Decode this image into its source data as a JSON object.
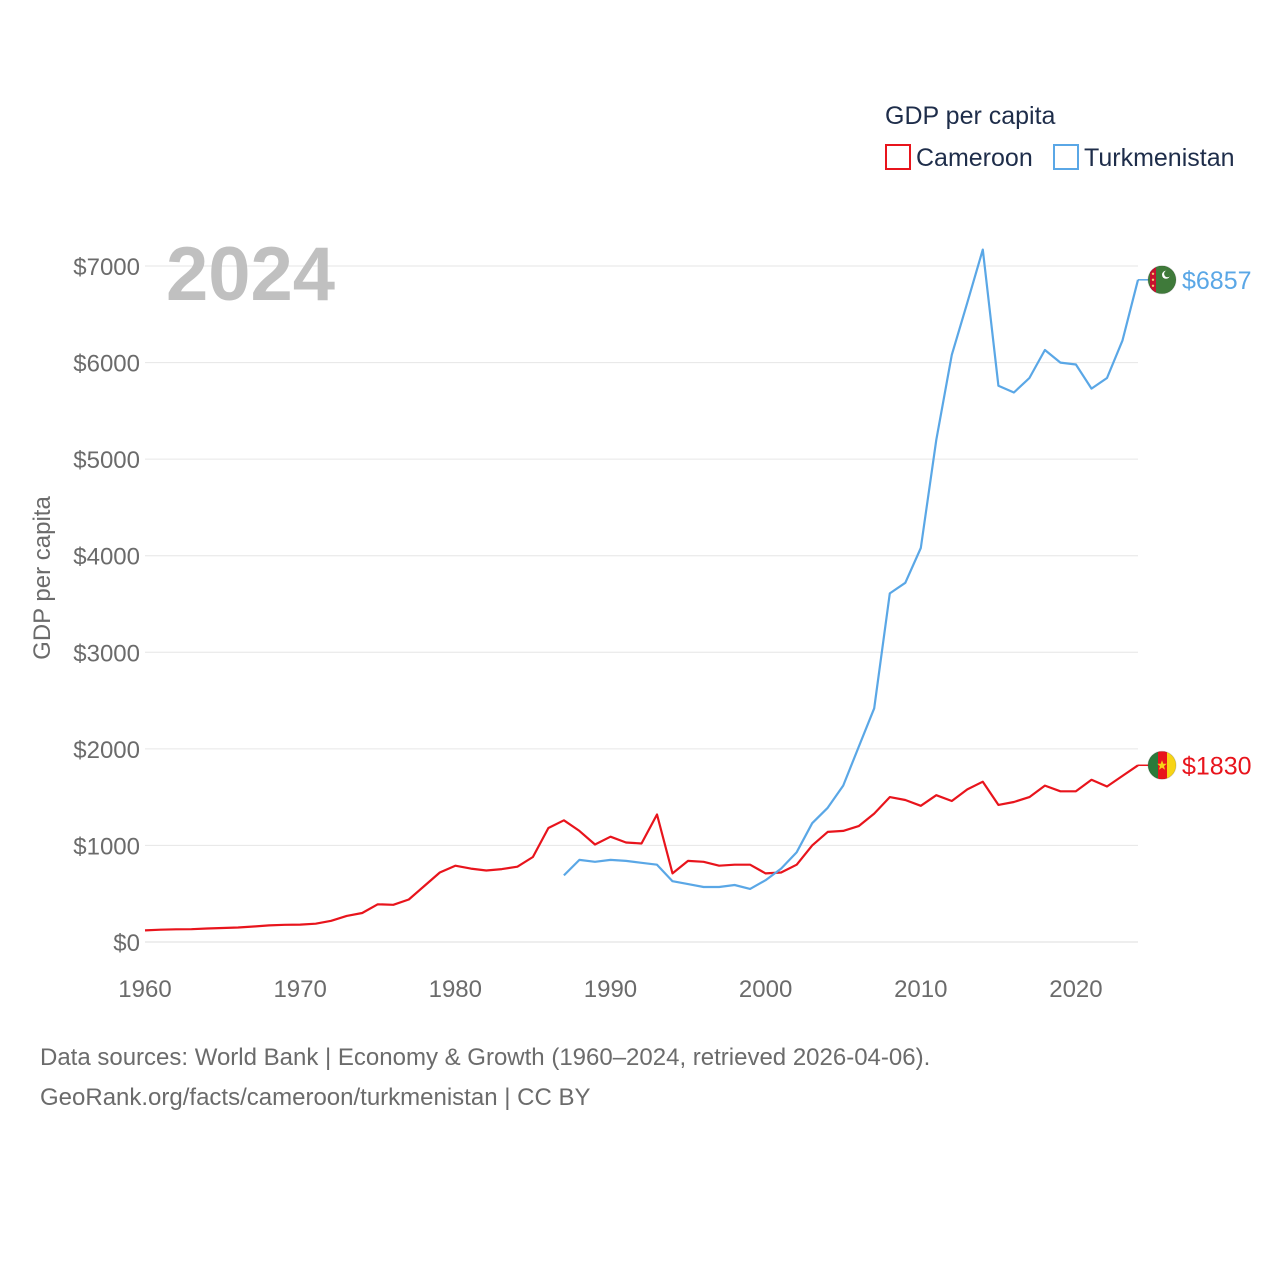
{
  "chart_data": {
    "type": "line",
    "title": "GDP per capita",
    "ylabel": "GDP per capita",
    "year_label": "2024",
    "xlim": [
      1960,
      2024
    ],
    "ylim": [
      0,
      7200
    ],
    "x_ticks": [
      1960,
      1970,
      1980,
      1990,
      2000,
      2010,
      2020
    ],
    "y_ticks": [
      0,
      1000,
      2000,
      3000,
      4000,
      5000,
      6000,
      7000
    ],
    "y_tick_labels": [
      "$0",
      "$1000",
      "$2000",
      "$3000",
      "$4000",
      "$5000",
      "$6000",
      "$7000"
    ],
    "grid": true,
    "legend_position": "top-right",
    "series": [
      {
        "name": "Cameroon",
        "color": "#e8141c",
        "end_label": "$1830",
        "flag_icon": "cameroon-flag-icon",
        "points": [
          [
            1960,
            120
          ],
          [
            1961,
            127
          ],
          [
            1962,
            131
          ],
          [
            1963,
            133
          ],
          [
            1964,
            140
          ],
          [
            1965,
            145
          ],
          [
            1966,
            150
          ],
          [
            1967,
            160
          ],
          [
            1968,
            172
          ],
          [
            1969,
            178
          ],
          [
            1970,
            180
          ],
          [
            1971,
            190
          ],
          [
            1972,
            220
          ],
          [
            1973,
            270
          ],
          [
            1974,
            300
          ],
          [
            1975,
            390
          ],
          [
            1976,
            385
          ],
          [
            1977,
            440
          ],
          [
            1978,
            580
          ],
          [
            1979,
            720
          ],
          [
            1980,
            790
          ],
          [
            1981,
            760
          ],
          [
            1982,
            740
          ],
          [
            1983,
            755
          ],
          [
            1984,
            780
          ],
          [
            1985,
            880
          ],
          [
            1986,
            1180
          ],
          [
            1987,
            1260
          ],
          [
            1988,
            1150
          ],
          [
            1989,
            1010
          ],
          [
            1990,
            1090
          ],
          [
            1991,
            1030
          ],
          [
            1992,
            1020
          ],
          [
            1993,
            1320
          ],
          [
            1994,
            710
          ],
          [
            1995,
            840
          ],
          [
            1996,
            830
          ],
          [
            1997,
            790
          ],
          [
            1998,
            800
          ],
          [
            1999,
            800
          ],
          [
            2000,
            710
          ],
          [
            2001,
            720
          ],
          [
            2002,
            800
          ],
          [
            2003,
            1000
          ],
          [
            2004,
            1140
          ],
          [
            2005,
            1150
          ],
          [
            2006,
            1200
          ],
          [
            2007,
            1330
          ],
          [
            2008,
            1500
          ],
          [
            2009,
            1470
          ],
          [
            2010,
            1410
          ],
          [
            2011,
            1520
          ],
          [
            2012,
            1460
          ],
          [
            2013,
            1580
          ],
          [
            2014,
            1660
          ],
          [
            2015,
            1420
          ],
          [
            2016,
            1450
          ],
          [
            2017,
            1500
          ],
          [
            2018,
            1620
          ],
          [
            2019,
            1560
          ],
          [
            2020,
            1560
          ],
          [
            2021,
            1680
          ],
          [
            2022,
            1610
          ],
          [
            2023,
            1720
          ],
          [
            2024,
            1830
          ]
        ]
      },
      {
        "name": "Turkmenistan",
        "color": "#5aa7e6",
        "end_label": "$6857",
        "flag_icon": "turkmenistan-flag-icon",
        "points": [
          [
            1987,
            690
          ],
          [
            1988,
            850
          ],
          [
            1989,
            830
          ],
          [
            1990,
            850
          ],
          [
            1991,
            840
          ],
          [
            1992,
            820
          ],
          [
            1993,
            800
          ],
          [
            1994,
            630
          ],
          [
            1995,
            600
          ],
          [
            1996,
            570
          ],
          [
            1997,
            570
          ],
          [
            1998,
            590
          ],
          [
            1999,
            550
          ],
          [
            2000,
            640
          ],
          [
            2001,
            760
          ],
          [
            2002,
            930
          ],
          [
            2003,
            1230
          ],
          [
            2004,
            1390
          ],
          [
            2005,
            1620
          ],
          [
            2006,
            2020
          ],
          [
            2007,
            2420
          ],
          [
            2008,
            3610
          ],
          [
            2009,
            3720
          ],
          [
            2010,
            4080
          ],
          [
            2011,
            5200
          ],
          [
            2012,
            6080
          ],
          [
            2013,
            6620
          ],
          [
            2014,
            7170
          ],
          [
            2015,
            5760
          ],
          [
            2016,
            5690
          ],
          [
            2017,
            5840
          ],
          [
            2018,
            6130
          ],
          [
            2019,
            6000
          ],
          [
            2020,
            5980
          ],
          [
            2021,
            5730
          ],
          [
            2022,
            5840
          ],
          [
            2023,
            6230
          ],
          [
            2024,
            6857
          ]
        ]
      }
    ]
  },
  "footer": {
    "line1": "Data sources: World Bank | Economy & Growth (1960–2024, retrieved 2026-04-06).",
    "line2": "GeoRank.org/facts/cameroon/turkmenistan | CC BY"
  }
}
